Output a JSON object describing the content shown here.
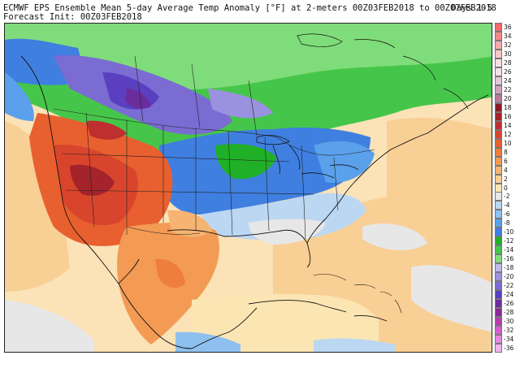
{
  "header": {
    "line1": "ECMWF EPS Ensemble Mean 5-day Average Temp Anomaly [°F] at 2-meters 00Z03FEB2018 to 00Z07FEB2018",
    "line2": "Forecast Init: 00Z03FEB2018",
    "days": "Days 1-5"
  },
  "legend": {
    "unit": "°F",
    "entries": [
      {
        "label": "36",
        "color": "#f26a6a"
      },
      {
        "label": "34",
        "color": "#f38a8a"
      },
      {
        "label": "32",
        "color": "#f6a9a9"
      },
      {
        "label": "30",
        "color": "#f9c8c8"
      },
      {
        "label": "28",
        "color": "#fce0e0"
      },
      {
        "label": "26",
        "color": "#f1e4ea"
      },
      {
        "label": "24",
        "color": "#e2c8d8"
      },
      {
        "label": "22",
        "color": "#cfa2bd"
      },
      {
        "label": "20",
        "color": "#b97a9c"
      },
      {
        "label": "18",
        "color": "#8a1a24"
      },
      {
        "label": "16",
        "color": "#a5232b"
      },
      {
        "label": "14",
        "color": "#bf2f2f"
      },
      {
        "label": "12",
        "color": "#d9452c"
      },
      {
        "label": "10",
        "color": "#e8602f"
      },
      {
        "label": "8",
        "color": "#ef7e3c"
      },
      {
        "label": "6",
        "color": "#f39a54"
      },
      {
        "label": "4",
        "color": "#f6b472"
      },
      {
        "label": "2",
        "color": "#f8cf95"
      },
      {
        "label": "0",
        "color": "#fbe6b3"
      },
      {
        "label": "-2",
        "color": "#e7e7e7"
      },
      {
        "label": "-4",
        "color": "#bcd7f2"
      },
      {
        "label": "-6",
        "color": "#8ec0ef"
      },
      {
        "label": "-8",
        "color": "#5aa0ea"
      },
      {
        "label": "-10",
        "color": "#3f7fe0"
      },
      {
        "label": "-12",
        "color": "#20b028"
      },
      {
        "label": "-14",
        "color": "#45c64a"
      },
      {
        "label": "-16",
        "color": "#7fdc7a"
      },
      {
        "label": "-18",
        "color": "#bdb9ea"
      },
      {
        "label": "-20",
        "color": "#9a92df"
      },
      {
        "label": "-22",
        "color": "#7a6cd2"
      },
      {
        "label": "-24",
        "color": "#5a3fc1"
      },
      {
        "label": "-26",
        "color": "#6b2d9c"
      },
      {
        "label": "-28",
        "color": "#8a2a98"
      },
      {
        "label": "-30",
        "color": "#b23eb0"
      },
      {
        "label": "-32",
        "color": "#d65ccf"
      },
      {
        "label": "-34",
        "color": "#e886e0"
      },
      {
        "label": "-36",
        "color": "#f2b3ee"
      }
    ]
  },
  "map": {
    "ocean_color": "#fbe2b7",
    "regions": [
      {
        "name": "western-us-warm",
        "anomaly": 12,
        "color": "#d9452c"
      },
      {
        "name": "great-basin-hot",
        "anomaly": 16,
        "color": "#a5232b"
      },
      {
        "name": "mexico-warm",
        "anomaly": 6,
        "color": "#f39a54"
      },
      {
        "name": "north-plains-cold",
        "anomaly": -24,
        "color": "#5a3fc1"
      },
      {
        "name": "canada-cold",
        "anomaly": -14,
        "color": "#45c64a"
      },
      {
        "name": "great-lakes-cold",
        "anomaly": -10,
        "color": "#3f7fe0"
      },
      {
        "name": "southeast-near-normal",
        "anomaly": -2,
        "color": "#e7e7e7"
      },
      {
        "name": "atlantic-warm",
        "anomaly": 2,
        "color": "#f8cf95"
      }
    ]
  }
}
